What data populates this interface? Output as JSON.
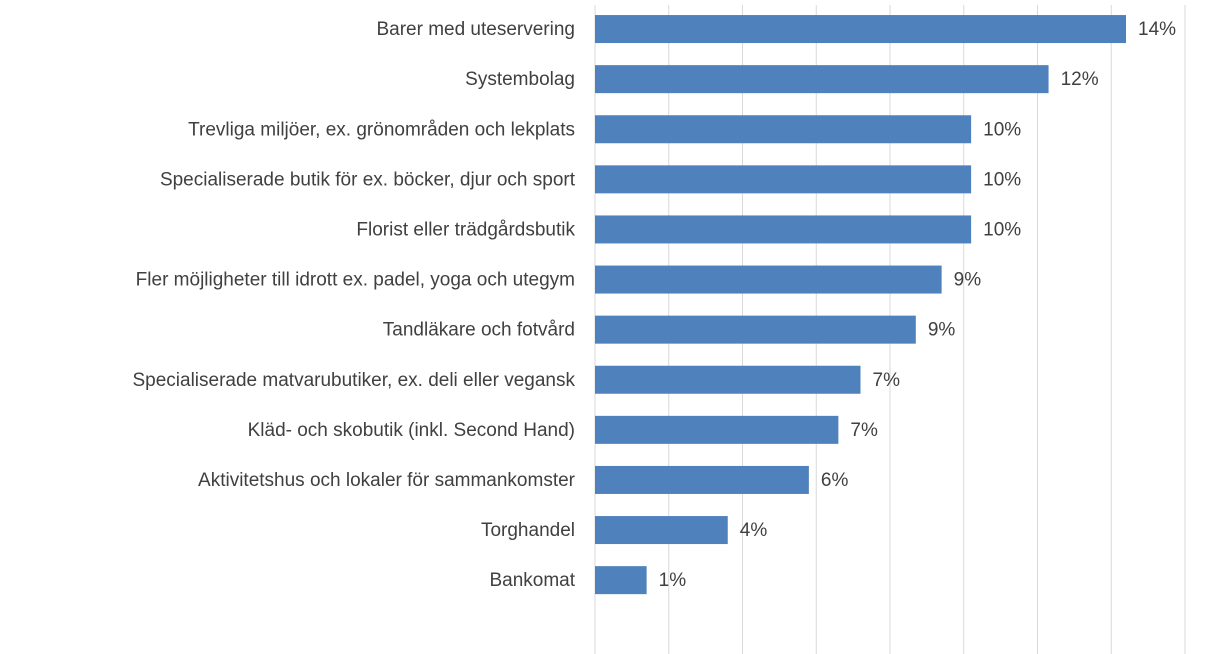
{
  "chart_data": {
    "type": "bar",
    "orientation": "horizontal",
    "categories": [
      "Barer med uteservering",
      "Systembolag",
      "Trevliga miljöer, ex. grönområden och lekplats",
      "Specialiserade butik för ex. böcker, djur och sport",
      "Florist eller trädgårdsbutik",
      "Fler möjligheter till idrott ex. padel, yoga och utegym",
      "Tandläkare och fotvård",
      "Specialiserade matvarubutiker, ex. deli eller vegansk",
      "Kläd- och skobutik (inkl. Second Hand)",
      "Aktivitetshus och lokaler för sammankomster",
      "Torghandel",
      "Bankomat"
    ],
    "values": [
      14.4,
      12.3,
      10.2,
      10.2,
      10.2,
      9.4,
      8.7,
      7.2,
      6.6,
      5.8,
      3.6,
      1.4
    ],
    "value_labels": [
      "14%",
      "12%",
      "10%",
      "10%",
      "10%",
      "9%",
      "9%",
      "7%",
      "7%",
      "6%",
      "4%",
      "1%"
    ],
    "color": "#4f81bd",
    "xlim": [
      0,
      16
    ],
    "xticks": [
      0,
      2,
      4,
      6,
      8,
      10,
      12,
      14,
      16
    ],
    "grid": true
  }
}
